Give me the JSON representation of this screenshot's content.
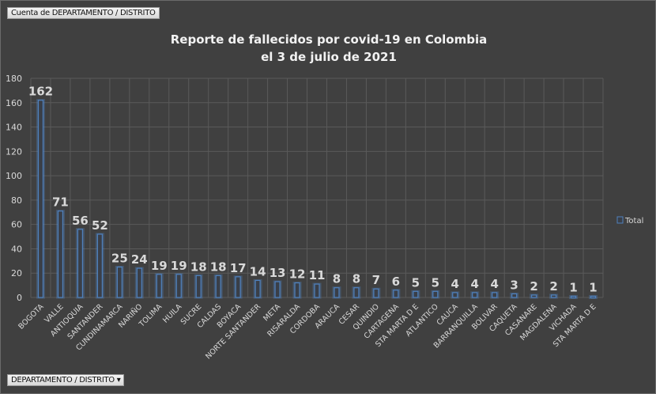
{
  "pivot": {
    "value_field_button": "Cuenta de DEPARTAMENTO  / DISTRITO",
    "axis_field_button": "DEPARTAMENTO  / DISTRITO",
    "dropdown_icon": "triangle-down"
  },
  "chart_data": {
    "type": "bar",
    "title_line1": "Reporte de fallecidos por covid-19 en Colombia",
    "title_line2": "el 3 de julio de 2021",
    "categories": [
      "BOGOTA",
      "VALLE",
      "ANTIOQUIA",
      "SANTANDER",
      "CUNDINAMARCA",
      "NARIÑO",
      "TOLIMA",
      "HUILA",
      "SUCRE",
      "CALDAS",
      "BOYACA",
      "NORTE SANTANDER",
      "META",
      "RISARALDA",
      "CORDOBA",
      "ARAUCA",
      "CESAR",
      "QUINDIO",
      "CARTAGENA",
      "STA MARTA D E",
      "ATLANTICO",
      "CAUCA",
      "BARRANQUILLA",
      "BOLIVAR",
      "CAQUETA",
      "CASANARE",
      "MAGDALENA",
      "VICHADA",
      "STA MARTA D E"
    ],
    "series": [
      {
        "name": "Total",
        "values": [
          162,
          71,
          56,
          52,
          25,
          24,
          19,
          19,
          18,
          18,
          17,
          14,
          13,
          12,
          11,
          8,
          8,
          7,
          6,
          5,
          5,
          4,
          4,
          4,
          3,
          2,
          2,
          1,
          1
        ]
      }
    ],
    "ylim": [
      0,
      180
    ],
    "yticks": [
      0,
      20,
      40,
      60,
      80,
      100,
      120,
      140,
      160,
      180
    ],
    "grid": true,
    "legend": "right",
    "bar_color": "#4f81bd"
  }
}
